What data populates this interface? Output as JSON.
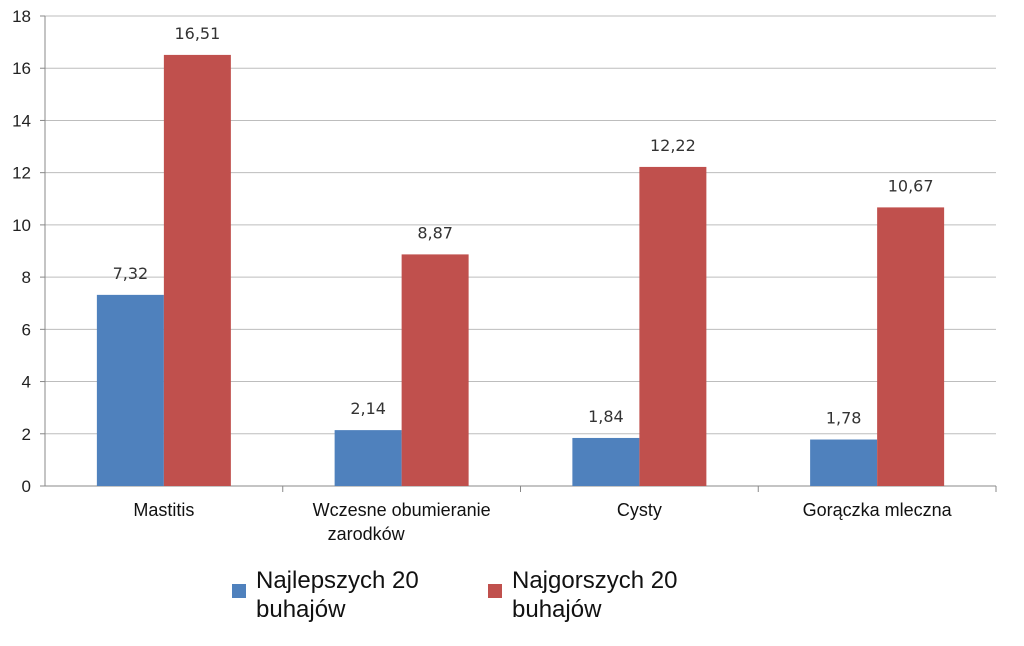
{
  "chart_data": {
    "type": "bar",
    "categories": [
      "Mastitis",
      "Wczesne obumieranie zarodków",
      "Cysty",
      "Gorączka mleczna"
    ],
    "category_lines": [
      [
        "Mastitis"
      ],
      [
        "Wczesne obumieranie",
        "zarodków"
      ],
      [
        "Cysty"
      ],
      [
        "Gorączka mleczna"
      ]
    ],
    "series": [
      {
        "name": "Najlepszych 20 buhajów",
        "name_lines": [
          "Najlepszych 20",
          "buhajów"
        ],
        "values": [
          7.32,
          2.14,
          1.84,
          1.78
        ],
        "labels": [
          "7,32",
          "2,14",
          "1,84",
          "1,78"
        ],
        "color": "#4f81bd"
      },
      {
        "name": "Najgorszych 20 buhajów",
        "name_lines": [
          "Najgorszych 20",
          "buhajów"
        ],
        "values": [
          16.51,
          8.87,
          12.22,
          10.67
        ],
        "labels": [
          "16,51",
          "8,87",
          "12,22",
          "10,67"
        ],
        "color": "#c0504d"
      }
    ],
    "yticks": [
      0,
      2,
      4,
      6,
      8,
      10,
      12,
      14,
      16,
      18
    ],
    "ylim": [
      0,
      18
    ],
    "grid": true,
    "legend": "bottom"
  }
}
